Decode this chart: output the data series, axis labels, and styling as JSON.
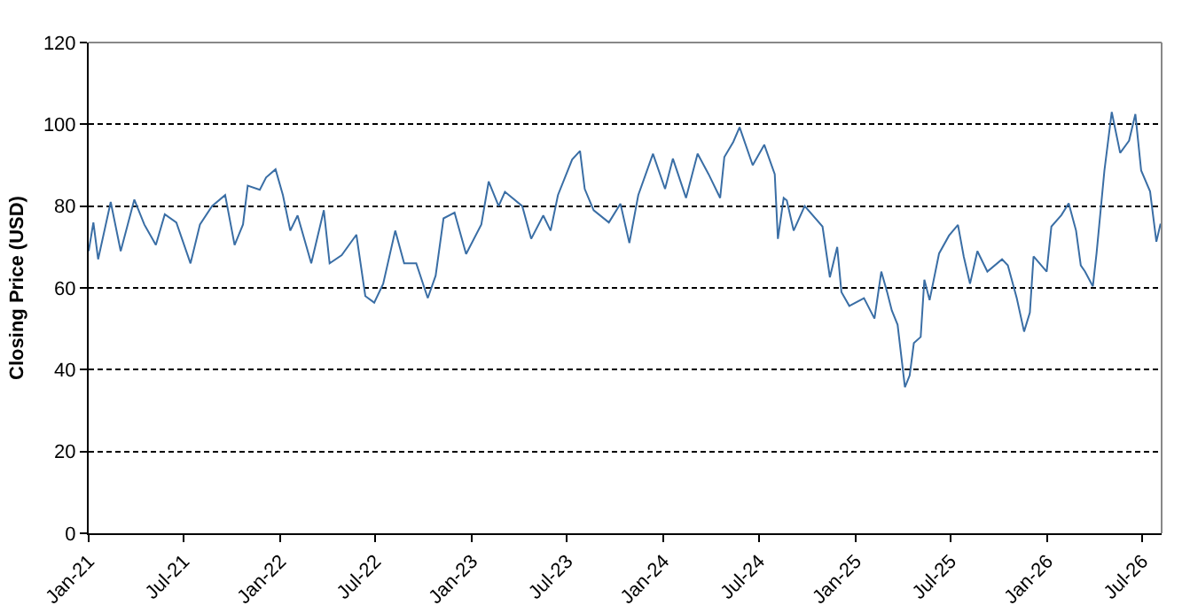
{
  "chart_data": {
    "type": "line",
    "ylabel": "Closing Price (USD)",
    "x": [
      "2021-01-01",
      "2021-01-10",
      "2021-01-19",
      "2021-02-12",
      "2021-03-03",
      "2021-03-29",
      "2021-04-17",
      "2021-05-09",
      "2021-05-26",
      "2021-06-17",
      "2021-07-14",
      "2021-08-01",
      "2021-08-24",
      "2021-09-18",
      "2021-10-06",
      "2021-10-22",
      "2021-10-31",
      "2021-11-23",
      "2021-12-05",
      "2021-12-23",
      "2022-01-06",
      "2022-01-20",
      "2022-02-03",
      "2022-03-01",
      "2022-03-25",
      "2022-04-05",
      "2022-04-28",
      "2022-05-26",
      "2022-06-12",
      "2022-06-29",
      "2022-07-16",
      "2022-08-08",
      "2022-08-25",
      "2022-09-17",
      "2022-10-09",
      "2022-10-24",
      "2022-11-08",
      "2022-11-29",
      "2022-12-21",
      "2023-01-19",
      "2023-02-02",
      "2023-02-21",
      "2023-03-05",
      "2023-04-07",
      "2023-04-24",
      "2023-05-17",
      "2023-05-31",
      "2023-06-14",
      "2023-07-11",
      "2023-07-26",
      "2023-08-04",
      "2023-08-21",
      "2023-09-19",
      "2023-10-11",
      "2023-10-28",
      "2023-11-14",
      "2023-12-12",
      "2024-01-04",
      "2024-01-19",
      "2024-02-13",
      "2024-03-06",
      "2024-03-27",
      "2024-04-18",
      "2024-04-26",
      "2024-05-13",
      "2024-05-25",
      "2024-06-19",
      "2024-07-11",
      "2024-07-31",
      "2024-08-06",
      "2024-08-17",
      "2024-08-23",
      "2024-09-05",
      "2024-09-26",
      "2024-10-30",
      "2024-11-13",
      "2024-11-27",
      "2024-12-05",
      "2024-12-20",
      "2025-01-17",
      "2025-02-06",
      "2025-02-19",
      "2025-03-02",
      "2025-03-11",
      "2025-03-22",
      "2025-04-05",
      "2025-04-14",
      "2025-04-22",
      "2025-05-05",
      "2025-05-12",
      "2025-05-22",
      "2025-06-09",
      "2025-06-28",
      "2025-07-15",
      "2025-07-26",
      "2025-08-07",
      "2025-08-21",
      "2025-09-09",
      "2025-10-07",
      "2025-10-18",
      "2025-11-04",
      "2025-11-18",
      "2025-11-29",
      "2025-12-06",
      "2025-12-31",
      "2026-01-09",
      "2026-01-28",
      "2026-02-11",
      "2026-02-25",
      "2026-03-06",
      "2026-03-14",
      "2026-03-29",
      "2026-04-05",
      "2026-04-20",
      "2026-05-04",
      "2026-05-20",
      "2026-06-06",
      "2026-06-18",
      "2026-06-29",
      "2026-07-16",
      "2026-07-28",
      "2026-08-05"
    ],
    "series": [
      {
        "color": "#3a6ea5",
        "values": [
          69,
          76,
          67,
          81,
          69,
          81.6,
          75.5,
          70.5,
          78,
          76,
          66,
          75.5,
          80,
          82.7,
          70.5,
          75.5,
          85,
          84,
          87,
          89,
          82.7,
          74,
          77.7,
          66,
          79,
          66,
          68,
          73,
          58,
          56.4,
          61,
          74,
          66,
          66,
          57.5,
          63,
          77,
          78.4,
          68.3,
          75.5,
          86,
          80,
          83.5,
          80,
          72,
          77.7,
          74,
          82.7,
          91.4,
          93.5,
          84.2,
          79,
          76,
          80.6,
          71,
          82.7,
          92.8,
          84.2,
          91.6,
          82,
          92.8,
          87.8,
          82,
          92,
          95.7,
          99.3,
          90,
          95,
          87.8,
          72,
          82,
          81.4,
          74,
          80,
          75,
          62.6,
          70,
          59,
          55.6,
          57.5,
          52.5,
          64,
          59,
          54.5,
          51,
          35.7,
          38.6,
          46.5,
          48,
          62,
          57,
          68.4,
          72.8,
          75.4,
          67.7,
          61,
          69,
          64,
          67,
          65.5,
          57.5,
          49.3,
          54,
          67.7,
          64,
          75,
          77.8,
          80.7,
          74,
          65.5,
          64,
          60.4,
          68.4,
          88.7,
          103,
          93,
          96,
          102.5,
          88.7,
          83.6,
          71.3,
          75.7
        ]
      }
    ],
    "xlim": [
      "2021-01-01",
      "2026-08-07"
    ],
    "xticks": [
      {
        "value": "2021-01-01",
        "label": "Jan-21"
      },
      {
        "value": "2021-07-01",
        "label": "Jul-21"
      },
      {
        "value": "2022-01-01",
        "label": "Jan-22"
      },
      {
        "value": "2022-07-01",
        "label": "Jul-22"
      },
      {
        "value": "2023-01-01",
        "label": "Jan-23"
      },
      {
        "value": "2023-07-01",
        "label": "Jul-23"
      },
      {
        "value": "2024-01-01",
        "label": "Jan-24"
      },
      {
        "value": "2024-07-01",
        "label": "Jul-24"
      },
      {
        "value": "2025-01-01",
        "label": "Jan-25"
      },
      {
        "value": "2025-07-01",
        "label": "Jul-25"
      },
      {
        "value": "2026-01-01",
        "label": "Jan-26"
      },
      {
        "value": "2026-07-01",
        "label": "Jul-26"
      }
    ],
    "ylim": [
      0,
      120
    ],
    "yticks": [
      0,
      20,
      40,
      60,
      80,
      100,
      120
    ],
    "grid": "y",
    "marker": "none",
    "line_style": "solid"
  }
}
